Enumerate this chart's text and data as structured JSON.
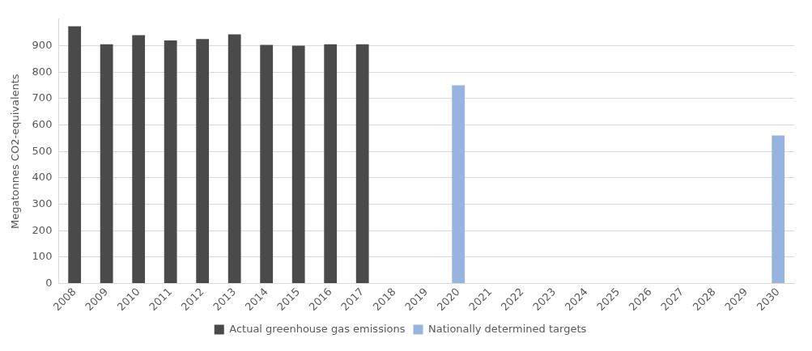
{
  "chart_data": {
    "type": "bar",
    "ylabel": "Megatonnes CO2-equivalents",
    "categories": [
      "2008",
      "2009",
      "2010",
      "2011",
      "2012",
      "2013",
      "2014",
      "2015",
      "2016",
      "2017",
      "2018",
      "2019",
      "2020",
      "2021",
      "2022",
      "2023",
      "2024",
      "2025",
      "2026",
      "2027",
      "2028",
      "2029",
      "2030"
    ],
    "series": [
      {
        "name": "Actual greenhouse gas emissions",
        "color": "#4a4a4a",
        "values": [
          973,
          905,
          940,
          920,
          925,
          943,
          903,
          900,
          905,
          905,
          null,
          null,
          null,
          null,
          null,
          null,
          null,
          null,
          null,
          null,
          null,
          null,
          null
        ]
      },
      {
        "name": "Nationally determined targets",
        "color": "#97b3df",
        "values": [
          null,
          null,
          null,
          null,
          null,
          null,
          null,
          null,
          null,
          null,
          null,
          null,
          750,
          null,
          null,
          null,
          null,
          null,
          null,
          null,
          null,
          null,
          560
        ]
      }
    ],
    "ylim": [
      0,
      1000
    ],
    "yticks": [
      0,
      100,
      200,
      300,
      400,
      500,
      600,
      700,
      800,
      900
    ],
    "grid": "y",
    "legend": "bottom"
  }
}
